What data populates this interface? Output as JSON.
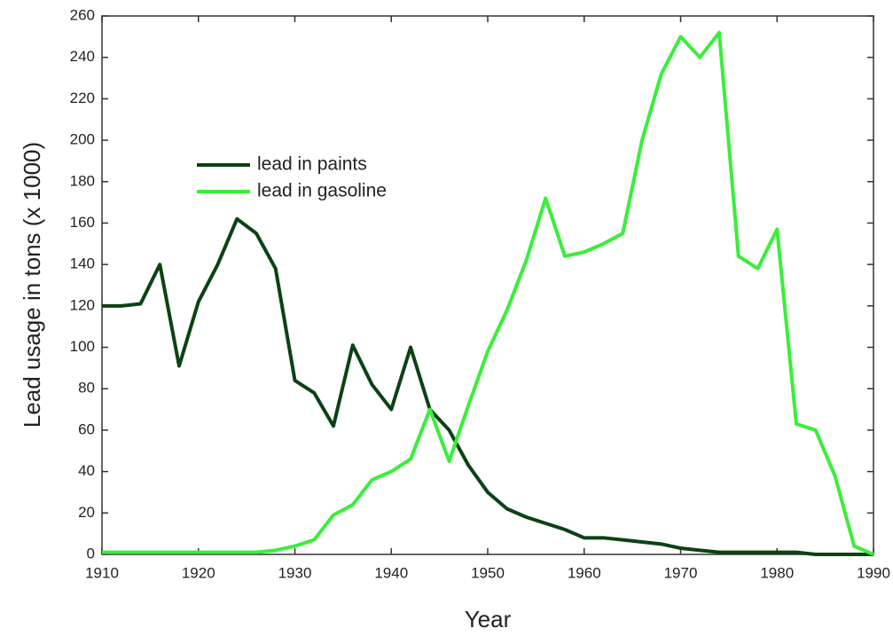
{
  "chart_data": {
    "type": "line",
    "x_label": "Year",
    "y_label": "Lead usage in tons (x 1000)",
    "x": [
      1910,
      1912,
      1914,
      1916,
      1918,
      1920,
      1922,
      1924,
      1926,
      1928,
      1930,
      1932,
      1934,
      1936,
      1938,
      1940,
      1942,
      1944,
      1946,
      1948,
      1950,
      1952,
      1954,
      1956,
      1958,
      1960,
      1962,
      1964,
      1966,
      1968,
      1970,
      1972,
      1974,
      1976,
      1978,
      1980,
      1982,
      1984,
      1986,
      1988,
      1990
    ],
    "series": [
      {
        "name": "lead in paints",
        "color": "#0b4212",
        "values": [
          120,
          120,
          121,
          140,
          91,
          122,
          140,
          162,
          155,
          138,
          84,
          78,
          62,
          101,
          82,
          70,
          100,
          70,
          60,
          43,
          30,
          22,
          18,
          15,
          12,
          8,
          8,
          7,
          6,
          5,
          3,
          2,
          1,
          1,
          1,
          1,
          1,
          0,
          0,
          0,
          0
        ]
      },
      {
        "name": "lead in gasoline",
        "color": "#3aee3a",
        "values": [
          1,
          1,
          1,
          1,
          1,
          1,
          1,
          1,
          1,
          2,
          4,
          7,
          19,
          24,
          36,
          40,
          46,
          70,
          45,
          72,
          98,
          118,
          142,
          172,
          144,
          146,
          150,
          155,
          200,
          232,
          250,
          240,
          252,
          144,
          138,
          157,
          63,
          60,
          38,
          4,
          0
        ]
      }
    ],
    "xlim": [
      1910,
      1990
    ],
    "xticks": [
      1910,
      1920,
      1930,
      1940,
      1950,
      1960,
      1970,
      1980,
      1990
    ],
    "ylim": [
      0,
      260
    ],
    "yticks": [
      0,
      20,
      40,
      60,
      80,
      100,
      120,
      140,
      160,
      180,
      200,
      220,
      240,
      260
    ],
    "legend": "upper left",
    "grid": false
  }
}
